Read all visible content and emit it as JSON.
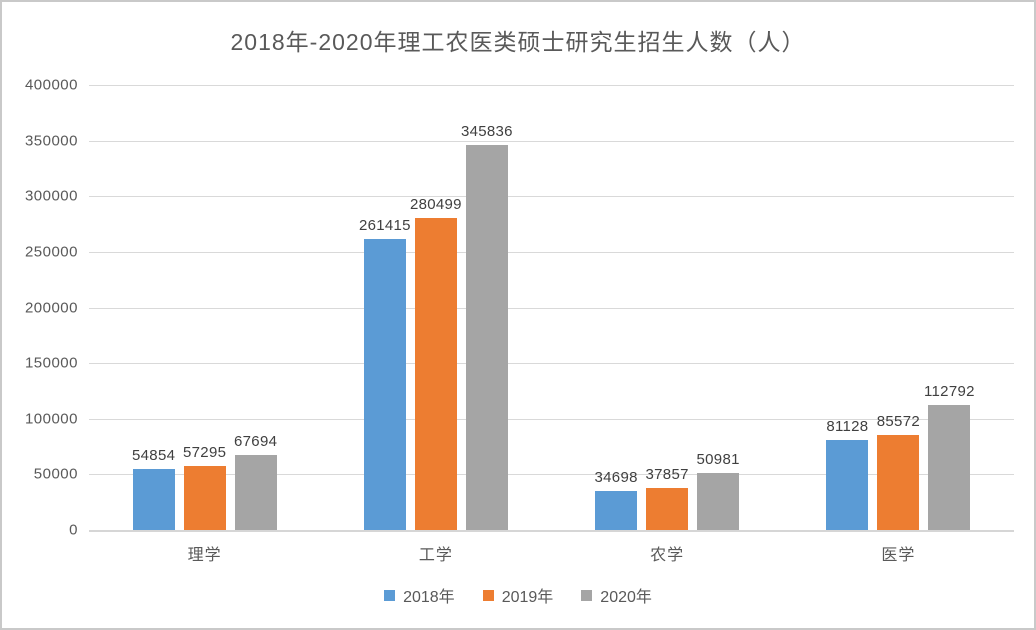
{
  "chart_data": {
    "type": "bar",
    "title": "2018年-2020年理工农医类硕士研究生招生人数（人）",
    "categories": [
      "理学",
      "工学",
      "农学",
      "医学"
    ],
    "series": [
      {
        "name": "2018年",
        "color": "#5B9BD5",
        "values": [
          54854,
          261415,
          34698,
          81128
        ]
      },
      {
        "name": "2019年",
        "color": "#ED7D31",
        "values": [
          57295,
          280499,
          37857,
          85572
        ]
      },
      {
        "name": "2020年",
        "color": "#A5A5A5",
        "values": [
          67694,
          345836,
          50981,
          112792
        ]
      }
    ],
    "xlabel": "",
    "ylabel": "",
    "ylim": [
      0,
      400000
    ],
    "ytick_step": 50000,
    "ytick_labels": [
      "400000",
      "350000",
      "300000",
      "250000",
      "200000",
      "150000",
      "100000",
      "50000",
      "0"
    ],
    "grid": true,
    "legend_position": "bottom",
    "colors": {
      "gridline": "#D9D9D9",
      "axis_text": "#595959",
      "data_label_text": "#404040",
      "title_text": "#595959",
      "background": "#FFFFFF",
      "frame_border": "#C9C9C9"
    }
  }
}
